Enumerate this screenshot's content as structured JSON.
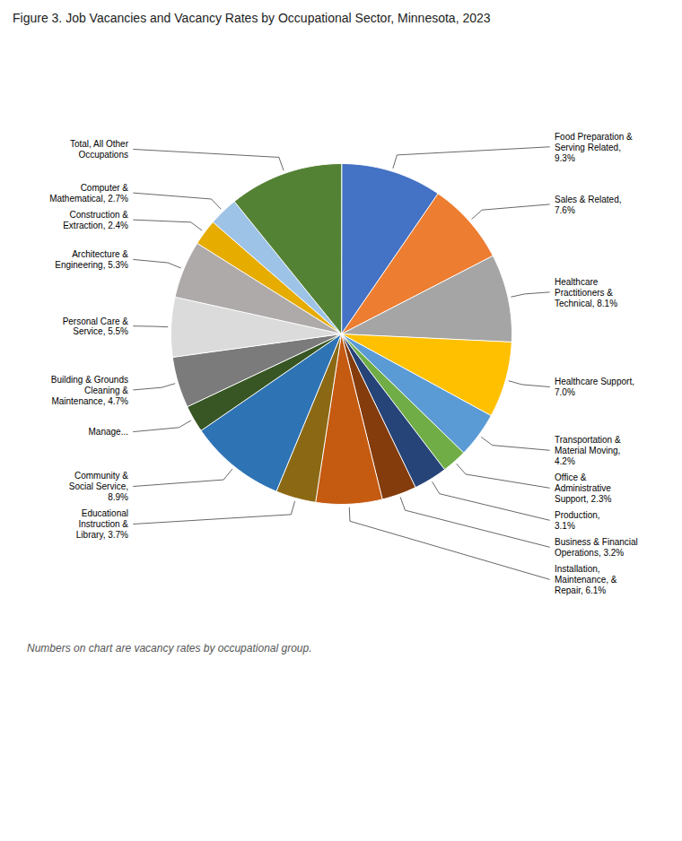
{
  "chart_data": {
    "type": "pie",
    "title": "Figure 3. Job Vacancies and Vacancy Rates by Occupational Sector, Minnesota, 2023",
    "footnote": "Numbers on chart are vacancy rates by occupational group.",
    "categories": [
      "Food Preparation &\nServing Related,\n9.3%",
      "Sales & Related,\n7.6%",
      "Healthcare\nPractitioners &\nTechnical, 8.1%",
      "Healthcare Support,\n7.0%",
      "Transportation &\nMaterial Moving,\n4.2%",
      "Office &\nAdministrative\nSupport, 2.3%",
      "Production,\n3.1%",
      "Business & Financial\nOperations, 3.2%",
      "Installation,\nMaintenance, &\nRepair, 6.1%",
      "Educational\nInstruction &\nLibrary, 3.7%",
      "Community &\nSocial Service,\n8.9%",
      "Manage...",
      "Building & Grounds\nCleaning &\nMaintenance, 4.7%",
      "Personal Care &\nService, 5.5%",
      "Architecture &\nEngineering, 5.3%",
      "Construction &\nExtraction, 2.4%",
      "Computer &\nMathematical, 2.7%",
      "Total, All Other\nOccupations"
    ],
    "values": [
      9.3,
      7.6,
      8.1,
      7.0,
      4.2,
      2.3,
      3.1,
      3.2,
      6.1,
      3.7,
      8.9,
      2.5,
      4.7,
      5.5,
      5.3,
      2.4,
      2.7,
      10.5
    ],
    "colors": [
      "#4472C4",
      "#ED7D31",
      "#A5A5A5",
      "#FFC000",
      "#5B9BD5",
      "#70AD47",
      "#264478",
      "#843C0C",
      "#C55A11",
      "#8B6914",
      "#2E74B5",
      "#375623",
      "#7B7B7B",
      "#DBDBDB",
      "#AEAAAA",
      "#E6AC00",
      "#9DC3E6",
      "#548235"
    ]
  }
}
